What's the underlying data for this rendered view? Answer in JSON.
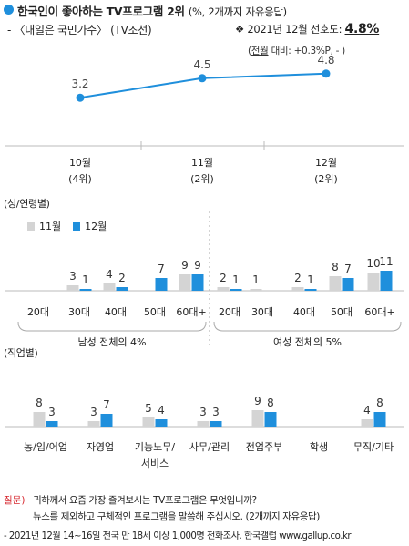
{
  "header": {
    "title": "한국인이 좋아하는 TV프로그램 2위",
    "title_note": "(%, 2개까지 자유응답)",
    "subtitle": "- 〈내일은 국민가수〉 (TV조선)",
    "pref_label": "❖ 2021년 12월 선호도:",
    "pref_value": "4.8%",
    "change_prefix": "(",
    "change_word": "전월",
    "change_rest": " 대비: +0.3%P, - )"
  },
  "colors": {
    "prev": "#d4d4d4",
    "curr": "#1f8fdc",
    "question": "#d7282f"
  },
  "chart_data": [
    {
      "type": "line",
      "name": "monthly-trend",
      "x": [
        "10월",
        "11월",
        "12월"
      ],
      "x_sub": [
        "(4위)",
        "(2위)",
        "(2위)"
      ],
      "values": [
        3.2,
        4.5,
        4.8
      ],
      "ylim": [
        0,
        6
      ]
    },
    {
      "type": "bar",
      "name": "by-gender-age",
      "section_label": "(성/연령별)",
      "legend": [
        "11월",
        "12월"
      ],
      "groups": [
        {
          "label": "남성 전체의 4%",
          "categories": [
            "20대",
            "30대",
            "40대",
            "50대",
            "60대+"
          ],
          "series": [
            {
              "name": "11월",
              "values": [
                null,
                3,
                4,
                null,
                9
              ]
            },
            {
              "name": "12월",
              "values": [
                null,
                1,
                2,
                7,
                9
              ]
            }
          ]
        },
        {
          "label": "여성 전체의 5%",
          "categories": [
            "20대",
            "30대",
            "40대",
            "50대",
            "60대+"
          ],
          "series": [
            {
              "name": "11월",
              "values": [
                2,
                1,
                2,
                8,
                10
              ]
            },
            {
              "name": "12월",
              "values": [
                1,
                null,
                1,
                7,
                11
              ]
            }
          ]
        }
      ],
      "ylim": [
        0,
        12
      ]
    },
    {
      "type": "bar",
      "name": "by-occupation",
      "section_label": "(직업별)",
      "categories": [
        "농/임/어업",
        "자영업",
        "기능노무/서비스",
        "사무/관리",
        "전업주부",
        "학생",
        "무직/기타"
      ],
      "category_lines": [
        [
          "농/임/어업"
        ],
        [
          "자영업"
        ],
        [
          "기능노무/",
          "서비스"
        ],
        [
          "사무/관리"
        ],
        [
          "전업주부"
        ],
        [
          "학생"
        ],
        [
          "무직/기타"
        ]
      ],
      "series": [
        {
          "name": "11월",
          "values": [
            8,
            3,
            5,
            3,
            9,
            null,
            4
          ]
        },
        {
          "name": "12월",
          "values": [
            3,
            7,
            4,
            3,
            8,
            null,
            8
          ]
        }
      ],
      "ylim": [
        0,
        12
      ]
    }
  ],
  "footer": {
    "question_label": "질문)",
    "question_line1": "귀하께서 요즘 가장 즐겨보시는 TV프로그램은 무엇입니까?",
    "question_line2": "뉴스를 제외하고 구체적인 프로그램을 말씀해 주십시오. (2개까지 자유응답)",
    "source": "- 2021년 12월 14~16일 전국 만 18세 이상 1,000명 전화조사. 한국갤럽 www.gallup.co.kr"
  }
}
